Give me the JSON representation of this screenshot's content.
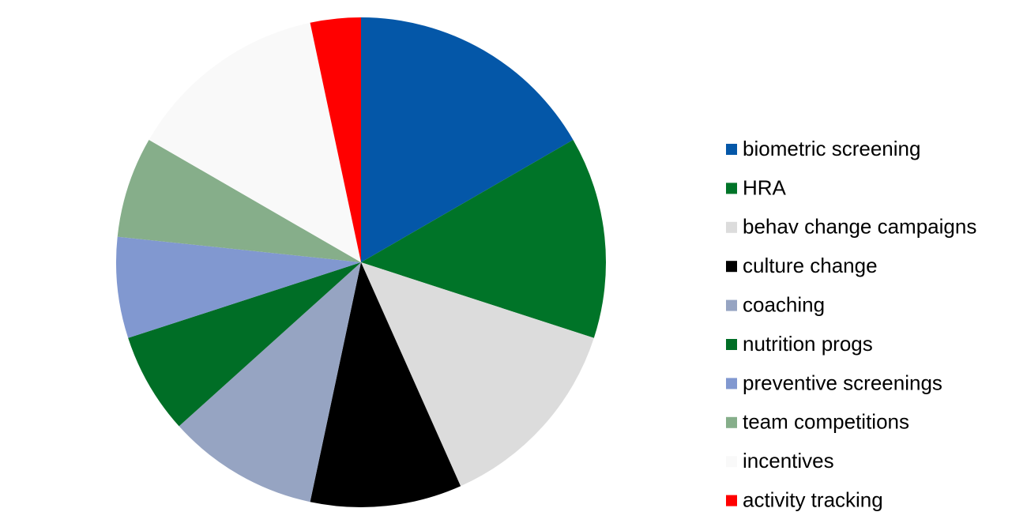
{
  "chart_data": {
    "type": "pie",
    "categories": [
      "biometric screening",
      "HRA",
      "behav change campaigns",
      "culture change",
      "coaching",
      "nutrition progs",
      "preventive screenings",
      "team competitions",
      "incentives",
      "activity tracking"
    ],
    "values": [
      5,
      4,
      4,
      3,
      3,
      2,
      2,
      2,
      4,
      1
    ],
    "colors": [
      "#0457a8",
      "#007428",
      "#dcdcdc",
      "#000000",
      "#96a4c2",
      "#006e26",
      "#8198d0",
      "#86ae8a",
      "#f9f9f9",
      "#ff0000"
    ],
    "legend": "right"
  }
}
